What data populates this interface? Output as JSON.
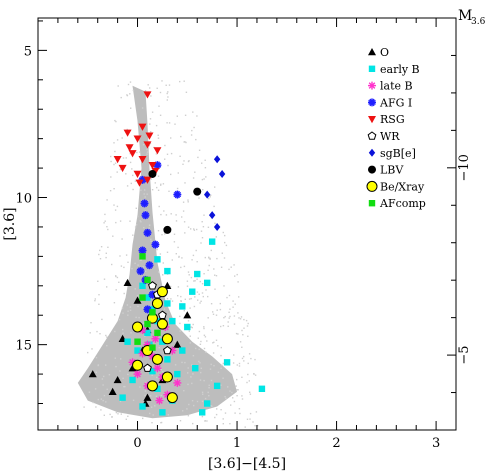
{
  "chart_data": {
    "type": "scatter",
    "title": "",
    "xlabel": "[3.6]−[4.5]",
    "ylabel": "[3.6]",
    "y2label": "M",
    "y2label_sub": "3.6",
    "xlim": [
      -1.0,
      3.2
    ],
    "ylim": [
      17.9,
      3.9
    ],
    "y2lim": [
      -3.0,
      -14.0
    ],
    "xticks": [
      0,
      1,
      2,
      3
    ],
    "yticks": [
      5,
      10,
      15
    ],
    "y2ticks": [
      -10,
      -5
    ],
    "legend_position": "top-right",
    "colors": {
      "field": "#bdbdbd",
      "O": "#000000",
      "early_B": "#00e5e5",
      "late_B": "#ff33cc",
      "AFG_I": "#1f1fff",
      "RSG": "#ee1111",
      "WR": "#000000",
      "sgB_e": "#0a12d9",
      "LBV": "#000000",
      "Be_Xray": "#ffff00",
      "AFcomp": "#11dd11"
    },
    "field_outline": [
      [
        -0.05,
        6.2
      ],
      [
        0.0,
        7.4
      ],
      [
        0.02,
        8.2
      ],
      [
        0.04,
        9.0
      ],
      [
        0.02,
        9.8
      ],
      [
        0.0,
        10.6
      ],
      [
        -0.05,
        11.6
      ],
      [
        -0.08,
        12.6
      ],
      [
        -0.12,
        13.4
      ],
      [
        -0.2,
        14.2
      ],
      [
        -0.35,
        15.0
      ],
      [
        -0.5,
        15.8
      ],
      [
        -0.6,
        16.3
      ],
      [
        -0.5,
        16.9
      ],
      [
        -0.2,
        17.3
      ],
      [
        0.15,
        17.5
      ],
      [
        0.5,
        17.4
      ],
      [
        0.8,
        17.1
      ],
      [
        1.0,
        16.6
      ],
      [
        0.95,
        16.0
      ],
      [
        0.75,
        15.4
      ],
      [
        0.55,
        14.9
      ],
      [
        0.38,
        14.3
      ],
      [
        0.28,
        13.5
      ],
      [
        0.2,
        12.2
      ],
      [
        0.15,
        10.5
      ],
      [
        0.12,
        9.0
      ],
      [
        0.1,
        7.5
      ],
      [
        0.08,
        6.4
      ]
    ],
    "series": [
      {
        "name": "O",
        "marker": "triangle",
        "points": [
          [
            -0.1,
            12.9
          ],
          [
            0.0,
            13.5
          ],
          [
            0.1,
            14.5
          ],
          [
            0.05,
            15.2
          ],
          [
            -0.05,
            15.8
          ],
          [
            -0.2,
            16.2
          ],
          [
            0.2,
            15.5
          ],
          [
            0.25,
            16.2
          ],
          [
            0.1,
            16.8
          ],
          [
            -0.25,
            16.6
          ],
          [
            0.3,
            13.0
          ],
          [
            0.15,
            13.9
          ],
          [
            -0.15,
            14.8
          ],
          [
            0.4,
            15.0
          ],
          [
            -0.45,
            16.0
          ],
          [
            0.5,
            14.0
          ],
          [
            0.08,
            17.0
          ]
        ]
      },
      {
        "name": "early B",
        "marker": "square",
        "points": [
          [
            0.05,
            13.0
          ],
          [
            0.1,
            13.4
          ],
          [
            0.15,
            13.8
          ],
          [
            0.2,
            14.2
          ],
          [
            0.1,
            14.6
          ],
          [
            0.25,
            14.9
          ],
          [
            0.0,
            15.2
          ],
          [
            0.3,
            15.5
          ],
          [
            0.15,
            15.9
          ],
          [
            -0.05,
            16.2
          ],
          [
            0.2,
            16.5
          ],
          [
            0.35,
            16.9
          ],
          [
            0.05,
            17.1
          ],
          [
            0.4,
            16.0
          ],
          [
            0.45,
            15.2
          ],
          [
            0.5,
            14.4
          ],
          [
            0.3,
            13.6
          ],
          [
            0.6,
            12.6
          ],
          [
            0.55,
            13.2
          ],
          [
            0.7,
            12.9
          ],
          [
            0.75,
            11.5
          ],
          [
            0.9,
            15.6
          ],
          [
            1.25,
            16.5
          ],
          [
            0.8,
            16.4
          ],
          [
            0.25,
            17.3
          ],
          [
            -0.15,
            16.8
          ],
          [
            -0.1,
            14.9
          ],
          [
            0.2,
            12.1
          ],
          [
            0.3,
            12.5
          ],
          [
            0.45,
            13.7
          ],
          [
            0.12,
            15.0
          ],
          [
            0.35,
            14.2
          ],
          [
            0.58,
            15.8
          ],
          [
            0.7,
            17.0
          ],
          [
            0.65,
            17.3
          ]
        ]
      },
      {
        "name": "late B",
        "marker": "star",
        "points": [
          [
            0.05,
            14.5
          ],
          [
            0.1,
            15.0
          ],
          [
            0.15,
            15.4
          ],
          [
            0.2,
            15.8
          ],
          [
            0.25,
            16.1
          ],
          [
            0.0,
            16.0
          ],
          [
            0.1,
            16.4
          ],
          [
            0.3,
            16.7
          ],
          [
            -0.05,
            15.6
          ],
          [
            0.35,
            15.2
          ],
          [
            0.18,
            14.8
          ],
          [
            0.4,
            16.3
          ],
          [
            0.22,
            16.9
          ],
          [
            0.05,
            15.3
          ],
          [
            0.28,
            14.4
          ]
        ]
      },
      {
        "name": "AFG I",
        "marker": "asterisk",
        "points": [
          [
            0.05,
            9.4
          ],
          [
            0.08,
            10.6
          ],
          [
            0.1,
            11.2
          ],
          [
            0.05,
            11.8
          ],
          [
            0.12,
            12.3
          ],
          [
            0.08,
            12.8
          ],
          [
            0.15,
            13.3
          ],
          [
            0.1,
            13.8
          ],
          [
            0.2,
            8.9
          ],
          [
            0.4,
            9.9
          ],
          [
            0.07,
            10.2
          ],
          [
            0.03,
            12.5
          ],
          [
            0.18,
            11.6
          ]
        ]
      },
      {
        "name": "RSG",
        "marker": "triangle-down",
        "points": [
          [
            0.1,
            6.5
          ],
          [
            -0.1,
            7.8
          ],
          [
            0.0,
            8.0
          ],
          [
            0.1,
            8.2
          ],
          [
            -0.05,
            8.5
          ],
          [
            0.05,
            8.7
          ],
          [
            0.15,
            8.9
          ],
          [
            -0.15,
            9.0
          ],
          [
            0.0,
            9.2
          ],
          [
            0.1,
            9.4
          ],
          [
            0.2,
            8.4
          ],
          [
            -0.08,
            8.3
          ],
          [
            0.05,
            7.6
          ],
          [
            0.12,
            7.9
          ],
          [
            0.02,
            9.5
          ],
          [
            -0.2,
            8.7
          ],
          [
            0.18,
            9.1
          ]
        ]
      },
      {
        "name": "WR",
        "marker": "open-pentagon",
        "points": [
          [
            0.15,
            13.0
          ],
          [
            0.2,
            13.3
          ],
          [
            0.25,
            14.0
          ],
          [
            0.3,
            15.2
          ],
          [
            0.1,
            15.8
          ]
        ]
      },
      {
        "name": "sgB[e]",
        "marker": "diamond",
        "points": [
          [
            0.8,
            8.7
          ],
          [
            0.85,
            9.2
          ],
          [
            0.7,
            9.9
          ],
          [
            0.75,
            10.6
          ],
          [
            0.8,
            11.0
          ]
        ]
      },
      {
        "name": "LBV",
        "marker": "circle",
        "points": [
          [
            0.15,
            9.2
          ],
          [
            0.6,
            9.8
          ],
          [
            0.3,
            11.1
          ]
        ]
      },
      {
        "name": "Be/Xray",
        "marker": "circle-yellow",
        "points": [
          [
            0.2,
            13.6
          ],
          [
            0.15,
            14.1
          ],
          [
            0.25,
            14.3
          ],
          [
            0.0,
            14.4
          ],
          [
            0.3,
            14.8
          ],
          [
            0.1,
            15.2
          ],
          [
            0.2,
            15.5
          ],
          [
            0.0,
            15.7
          ],
          [
            0.3,
            16.1
          ],
          [
            0.15,
            16.4
          ],
          [
            0.35,
            16.8
          ],
          [
            0.25,
            13.2
          ]
        ]
      },
      {
        "name": "AFcomp",
        "marker": "square-green",
        "points": [
          [
            0.05,
            12.0
          ],
          [
            0.1,
            12.8
          ],
          [
            0.05,
            13.4
          ],
          [
            0.15,
            13.9
          ],
          [
            0.1,
            14.3
          ],
          [
            0.2,
            14.6
          ],
          [
            0.0,
            14.9
          ],
          [
            0.15,
            15.1
          ]
        ]
      }
    ]
  }
}
